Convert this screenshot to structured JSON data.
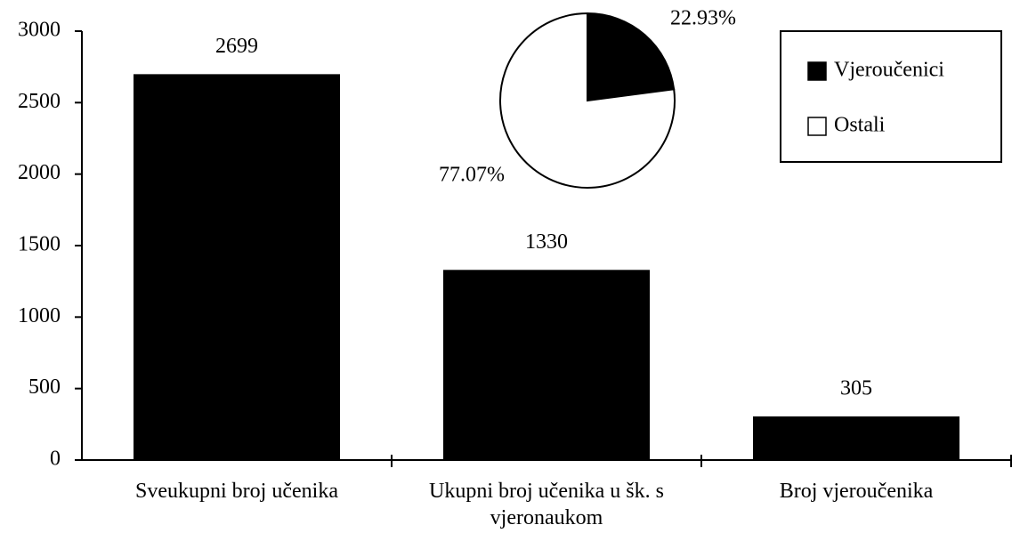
{
  "chart_data": [
    {
      "type": "bar",
      "categories": [
        "Sveukupni broj učenika",
        "Ukupni broj učenika u šk. s vjeronaukom",
        "Broj vjeroučenika"
      ],
      "values": [
        2699,
        1330,
        305
      ],
      "color": "#000000",
      "ylim": [
        0,
        3000
      ],
      "yticks": [
        0,
        500,
        1000,
        1500,
        2000,
        2500,
        3000
      ],
      "grid": false
    },
    {
      "type": "pie",
      "labels": [
        "Vjeroučenici",
        "Ostali"
      ],
      "values": [
        22.93,
        77.07
      ],
      "value_labels": [
        "22.93%",
        "77.07%"
      ],
      "colors": [
        "#000000",
        "#ffffff"
      ],
      "legend": "right"
    }
  ]
}
